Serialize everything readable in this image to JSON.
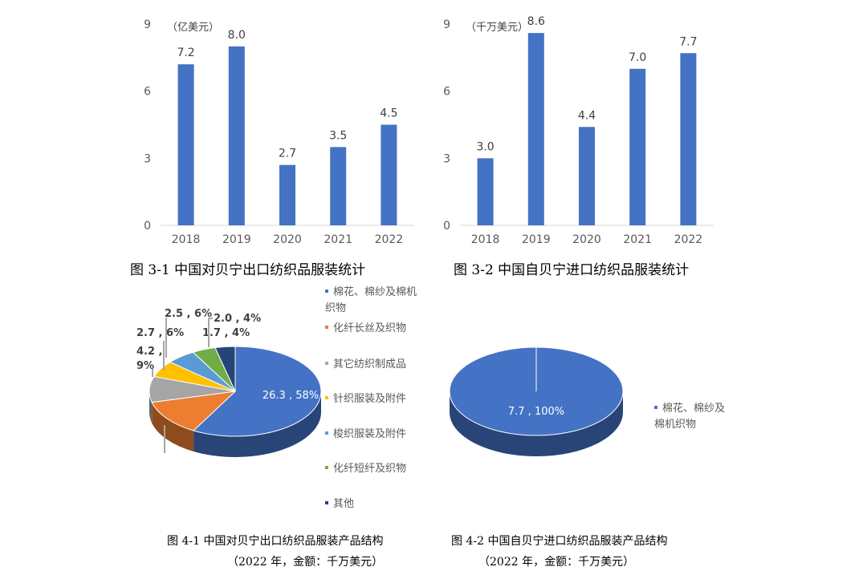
{
  "chart_data": [
    {
      "type": "bar",
      "unit_label": "（亿美元）",
      "categories": [
        "2018",
        "2019",
        "2020",
        "2021",
        "2022"
      ],
      "values": [
        7.2,
        8.0,
        2.7,
        3.5,
        4.5
      ],
      "yticks": [
        0,
        3,
        6,
        9
      ],
      "ylim": [
        0,
        9
      ],
      "color": "#4472C4",
      "caption": "图 3-1  中国对贝宁出口纺织品服装统计"
    },
    {
      "type": "bar",
      "unit_label": "（千万美元）",
      "categories": [
        "2018",
        "2019",
        "2020",
        "2021",
        "2022"
      ],
      "values": [
        3.0,
        8.6,
        4.4,
        7.0,
        7.7
      ],
      "yticks": [
        0,
        3,
        6,
        9
      ],
      "ylim": [
        0,
        9
      ],
      "color": "#4472C4",
      "caption": "图 3-2  中国自贝宁进口纺织品服装统计"
    },
    {
      "type": "pie",
      "style": "3d",
      "caption": "图 4-1  中国对贝宁出口纺织品服装产品结构",
      "subcaption": "（2022 年，金额：千万美元）",
      "slices": [
        {
          "name": "棉花、棉纱及棉机织物",
          "value": 26.3,
          "label": "26.3 , 58%",
          "color": "#4472C4"
        },
        {
          "name": "化纤长丝及织物",
          "value": 5.9,
          "label": "",
          "color": "#ED7D31"
        },
        {
          "name": "其它纺织制成品",
          "value": 4.2,
          "label": "4.2 , 9%",
          "color": "#A5A5A5"
        },
        {
          "name": "针织服装及附件",
          "value": 2.7,
          "label": "2.7 , 6%",
          "color": "#FFC000"
        },
        {
          "name": "梭织服装及附件",
          "value": 2.5,
          "label": "2.5 , 6%",
          "color": "#5B9BD5"
        },
        {
          "name": "化纤短纤及织物",
          "value": 2.0,
          "label": "2.0 , 4%",
          "color": "#70AD47"
        },
        {
          "name": "其他",
          "value": 1.7,
          "label": "1.7 , 4%",
          "color": "#264478"
        }
      ],
      "legend": "right"
    },
    {
      "type": "pie",
      "style": "3d",
      "caption": "图 4-2  中国自贝宁进口纺织品服装产品结构",
      "subcaption": "（2022 年，金额：千万美元）",
      "slices": [
        {
          "name": "棉花、棉纱及棉机织物",
          "value": 7.7,
          "label": "7.7 , 100%",
          "color": "#4472C4"
        }
      ],
      "legend": "right"
    }
  ]
}
